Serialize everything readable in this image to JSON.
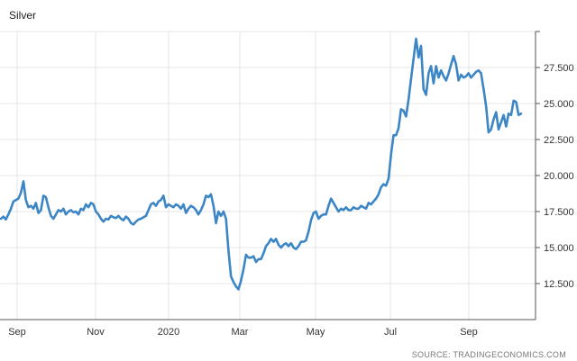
{
  "chart_data": {
    "type": "line",
    "title": "Silver",
    "xlabel": "",
    "ylabel": "",
    "source": "SOURCE: TRADINGECONOMICS.COM",
    "ylim": [
      10000,
      30000
    ],
    "y_ticks": [
      "12.500",
      "15.000",
      "17.500",
      "20.000",
      "22.500",
      "25.000",
      "27.500"
    ],
    "x_ticks": [
      "Sep",
      "Nov",
      "2020",
      "Mar",
      "May",
      "Jul",
      "Sep"
    ],
    "grid": true,
    "line_color": "#3d86c6",
    "series": [
      {
        "values": [
          17000,
          17150,
          16950,
          17300,
          17700,
          18200,
          18300,
          18400,
          18800,
          19600,
          18300,
          17800,
          17900,
          17700,
          18100,
          17400,
          17600,
          18600,
          18500,
          17800,
          17200,
          17000,
          17300,
          17600,
          17500,
          17700,
          17300,
          17500,
          17600,
          17450,
          17500,
          17300,
          17700,
          17600,
          18000,
          17800,
          18100,
          18000,
          17500,
          17300,
          17000,
          16800,
          17000,
          16950,
          17200,
          17100,
          17050,
          17200,
          17000,
          16900,
          17150,
          17000,
          16700,
          16600,
          16800,
          16950,
          17000,
          17100,
          17200,
          17600,
          18000,
          18100,
          17900,
          18200,
          18300,
          18600,
          17800,
          18000,
          17900,
          17800,
          18000,
          17900,
          17700,
          18000,
          17400,
          17700,
          17900,
          17800,
          17600,
          17300,
          17600,
          18000,
          18600,
          18500,
          18700,
          17900,
          16700,
          17500,
          17200,
          17500,
          17000,
          14800,
          13000,
          12600,
          12300,
          12100,
          12700,
          13500,
          14500,
          14300,
          14300,
          14400,
          14000,
          14200,
          14200,
          14600,
          15100,
          15300,
          15600,
          15400,
          15600,
          15200,
          15000,
          15200,
          15300,
          15100,
          15300,
          15000,
          14900,
          15100,
          15400,
          15400,
          15500,
          16100,
          16900,
          17400,
          17500,
          17000,
          17200,
          17300,
          17300,
          17900,
          18400,
          18100,
          17800,
          17500,
          17700,
          17600,
          17800,
          17600,
          17600,
          17800,
          17700,
          17700,
          17900,
          17800,
          17700,
          18100,
          18000,
          18200,
          18400,
          18700,
          19200,
          19400,
          19300,
          19800,
          21500,
          22800,
          22800,
          23300,
          24600,
          24500,
          24100,
          25300,
          26700,
          28100,
          29500,
          28200,
          29000,
          26000,
          25600,
          27100,
          27600,
          26400,
          27600,
          26800,
          27300,
          26900,
          26600,
          27100,
          27700,
          28300,
          27700,
          26600,
          27000,
          26800,
          26900,
          27100,
          26800,
          27000,
          27200,
          27300,
          27100,
          26000,
          24800,
          23000,
          23200,
          23900,
          24400,
          23200,
          23700,
          24200,
          23400,
          24300,
          24200,
          25200,
          25100,
          24200,
          24300
        ]
      }
    ]
  }
}
